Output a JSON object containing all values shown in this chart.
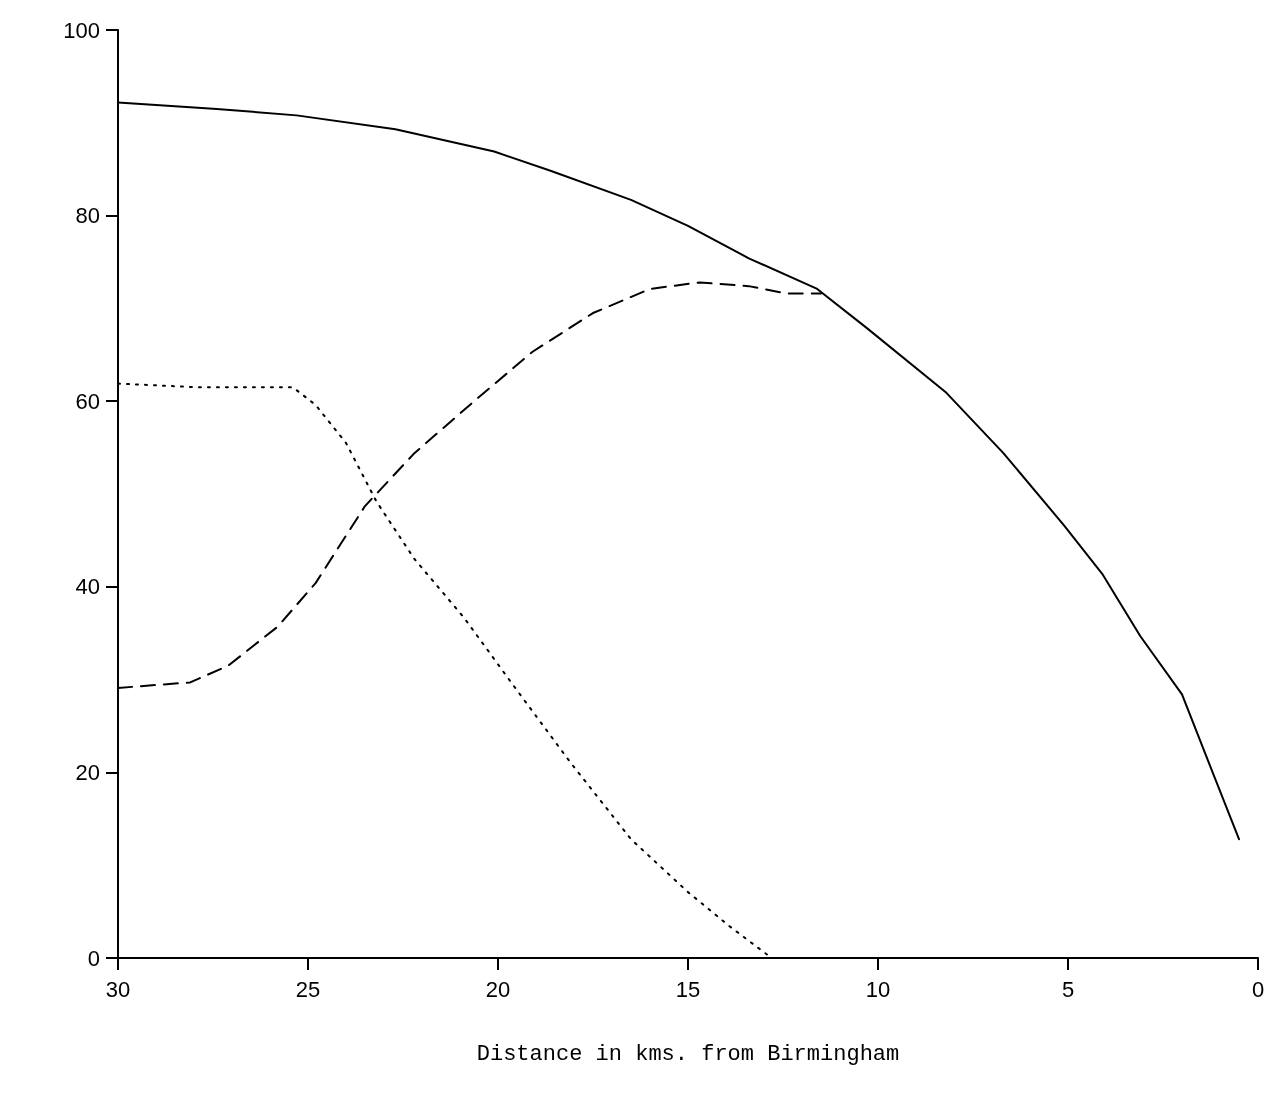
{
  "chart_data": {
    "type": "line",
    "xlabel": "Distance in kms. from Birmingham",
    "xlim": [
      30,
      0
    ],
    "xticks": [
      30,
      25,
      20,
      15,
      10,
      5,
      0
    ],
    "ylim": [
      0,
      100
    ],
    "yticks": [
      0,
      20,
      40,
      60,
      80,
      100
    ],
    "grid": false,
    "series": [
      {
        "color": "#000000",
        "line_style": "solid",
        "x": [
          30,
          27.4,
          25.3,
          22.7,
          20.1,
          18.6,
          16.5,
          15.0,
          13.4,
          11.6,
          10.3,
          8.2,
          6.7,
          5.1,
          4.1,
          3.1,
          2.0,
          1.3,
          0.5
        ],
        "values": [
          92.2,
          91.5,
          90.8,
          89.3,
          86.9,
          84.8,
          81.7,
          78.9,
          75.4,
          72.1,
          67.9,
          60.9,
          54.4,
          46.6,
          41.4,
          34.7,
          28.4,
          21.1,
          12.8
        ]
      },
      {
        "color": "#000000",
        "line_style": "dashed",
        "x": [
          30,
          28.1,
          27.1,
          25.8,
          24.8,
          23.5,
          22.2,
          20.6,
          19.1,
          17.5,
          16.0,
          14.7,
          13.4,
          12.4,
          11.5
        ],
        "values": [
          29.1,
          29.7,
          31.5,
          35.7,
          40.4,
          48.7,
          54.4,
          60.1,
          65.3,
          69.5,
          72.1,
          72.8,
          72.4,
          71.6,
          71.6
        ]
      },
      {
        "color": "#000000",
        "line_style": "dotted",
        "x": [
          30,
          27.9,
          25.4,
          24.8,
          24.0,
          23.2,
          22.2,
          20.9,
          19.6,
          18.1,
          16.5,
          15.0,
          13.9,
          12.8
        ],
        "values": [
          61.9,
          61.5,
          61.5,
          59.6,
          55.5,
          49.2,
          43.0,
          36.7,
          29.4,
          21.1,
          12.8,
          7.1,
          3.4,
          0
        ]
      }
    ]
  }
}
